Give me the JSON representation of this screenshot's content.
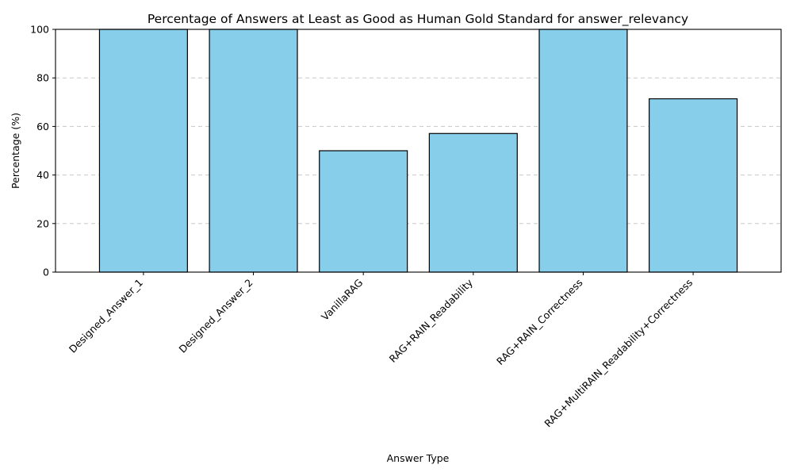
{
  "chart_data": {
    "type": "bar",
    "title": "Percentage of Answers at Least as Good as Human Gold Standard for answer_relevancy",
    "xlabel": "Answer Type",
    "ylabel": "Percentage (%)",
    "categories": [
      "Designed_Answer_1",
      "Designed_Answer_2",
      "VanillaRAG",
      "RAG+RAIN_Readability",
      "RAG+RAIN_Correctness",
      "RAG+MultiRAIN_Readability+Correctness"
    ],
    "values": [
      100,
      100,
      50,
      57.1,
      100,
      71.4
    ],
    "ylim": [
      0,
      100
    ],
    "yticks": [
      0,
      20,
      40,
      60,
      80,
      100
    ],
    "bar_color": "#87ceeb",
    "edge_color": "#000000",
    "grid": "y-dashed",
    "legend": "none"
  }
}
